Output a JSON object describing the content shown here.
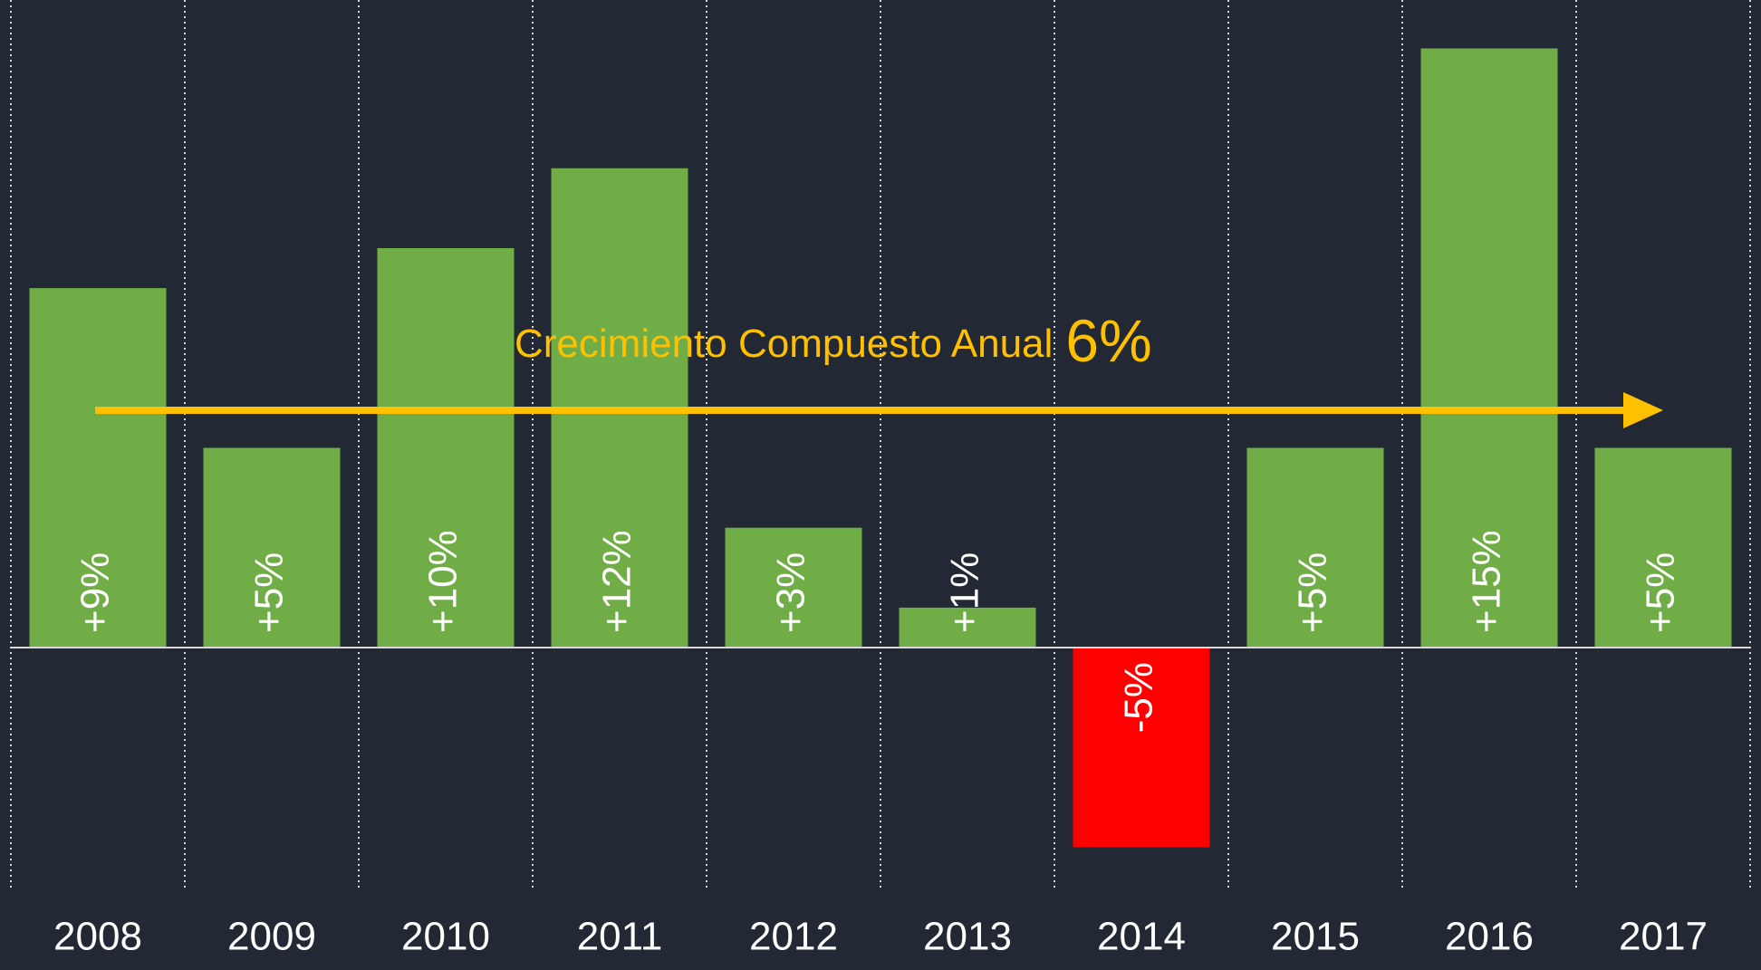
{
  "chart_data": {
    "type": "bar",
    "categories": [
      "2008",
      "2009",
      "2010",
      "2011",
      "2012",
      "2013",
      "2014",
      "2015",
      "2016",
      "2017"
    ],
    "values": [
      9,
      5,
      10,
      12,
      3,
      1,
      -5,
      5,
      15,
      5
    ],
    "value_labels": [
      "+9%",
      "+5%",
      "+10%",
      "+12%",
      "+3%",
      "+1%",
      "-5%",
      "+5%",
      "+15%",
      "+5%"
    ],
    "color": "#70ad47",
    "negative_color": "#ff0000",
    "annotation": {
      "text": "Crecimiento Compuesto Anual",
      "value_label": "6%",
      "color": "#ffc000"
    }
  }
}
